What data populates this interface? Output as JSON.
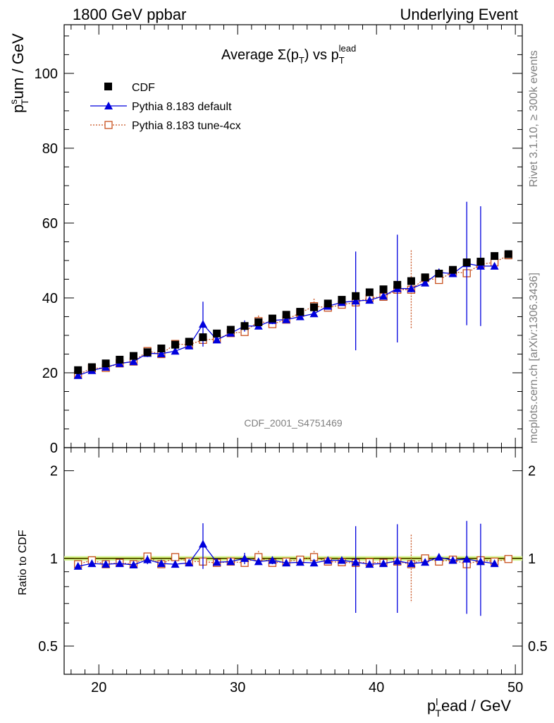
{
  "header": {
    "left": "1800 GeV ppbar",
    "right": "Underlying Event"
  },
  "side_labels": {
    "rivet": "Rivet 3.1.10, ≥ 300k events",
    "mcplots": "mcplots.cern.ch [arXiv:1306.3436]"
  },
  "colors": {
    "cdf": "#000000",
    "default": "#0000dd",
    "tune": "#c8501e",
    "band_green": "#d4f598",
    "band_yellow": "#ffff00"
  },
  "chart_data": [
    {
      "type": "scatter",
      "title": "Average Σ(p_T) vs p_T^lead",
      "title_parts": {
        "pre": "Average ",
        "sigma": "Σ(p",
        "sub1": "T",
        "close": ") vs p",
        "sub2": "T",
        "sup2": "lead"
      },
      "ylabel_parts": {
        "p": "p",
        "sup": "s",
        "sub": "T",
        "rest": "um / GeV"
      },
      "watermark": "CDF_2001_S4751469",
      "xlim": [
        17.5,
        50.5
      ],
      "ylim": [
        0,
        113
      ],
      "yticks": [
        0,
        20,
        40,
        60,
        80,
        100
      ],
      "ytick_labels": [
        "0",
        "20",
        "40",
        "60",
        "80",
        "100"
      ],
      "legend": [
        "CDF",
        "Pythia 8.183 default",
        "Pythia 8.183 tune-4cx"
      ],
      "x": [
        18.5,
        19.5,
        20.5,
        21.5,
        22.5,
        23.5,
        24.5,
        25.5,
        26.5,
        27.5,
        28.5,
        29.5,
        30.5,
        31.5,
        32.5,
        33.5,
        34.5,
        35.5,
        36.5,
        37.5,
        38.5,
        39.5,
        40.5,
        41.5,
        42.5,
        43.5,
        44.5,
        45.5,
        46.5,
        47.5,
        48.5,
        49.5
      ],
      "series": [
        {
          "name": "CDF",
          "values": [
            20.7,
            21.5,
            22.5,
            23.5,
            24.5,
            25.5,
            26.5,
            27.5,
            28.3,
            29.5,
            30.5,
            31.5,
            32.5,
            33.5,
            34.5,
            35.5,
            36.3,
            37.5,
            38.5,
            39.5,
            40.5,
            41.5,
            42.3,
            43.5,
            44.5,
            45.5,
            46.5,
            47.5,
            49.5,
            49.7,
            51.2,
            51.7
          ],
          "errors": [
            0.4,
            0.4,
            0.4,
            0.4,
            0.4,
            0.4,
            0.4,
            0.4,
            0.4,
            0.4,
            0.4,
            0.4,
            0.4,
            0.4,
            0.4,
            0.4,
            0.4,
            0.4,
            0.4,
            0.4,
            0.4,
            0.4,
            0.4,
            0.4,
            0.4,
            0.4,
            0.4,
            0.4,
            0.4,
            0.4,
            0.4,
            0.4
          ]
        },
        {
          "name": "Pythia 8.183 default",
          "x": [
            18.5,
            19.5,
            20.5,
            21.5,
            22.5,
            23.5,
            24.5,
            25.5,
            26.5,
            27.5,
            28.5,
            29.5,
            30.5,
            31.5,
            32.5,
            33.5,
            34.5,
            35.5,
            36.5,
            37.5,
            38.5,
            39.5,
            40.5,
            41.5,
            42.5,
            43.5,
            44.5,
            45.5,
            46.5,
            47.5,
            48.5
          ],
          "values": [
            19.3,
            20.6,
            21.5,
            22.5,
            23.0,
            25.2,
            25.1,
            25.8,
            27.2,
            33.0,
            28.8,
            30.6,
            32.5,
            32.5,
            34.0,
            34.2,
            35.0,
            35.8,
            37.8,
            38.8,
            39.2,
            39.4,
            40.5,
            42.5,
            42.5,
            44.0,
            46.8,
            46.5,
            49.2,
            48.5,
            48.5
          ],
          "errors": [
            0.5,
            0.5,
            0.5,
            0.5,
            0.5,
            1.0,
            0.5,
            0.5,
            0.7,
            6.0,
            0.6,
            0.6,
            1.5,
            0.6,
            1.0,
            0.6,
            0.6,
            0.6,
            0.6,
            0.6,
            13.2,
            0.8,
            0.8,
            14.4,
            1.0,
            0.8,
            1.0,
            0.8,
            16.5,
            16.0,
            0.8
          ]
        },
        {
          "name": "Pythia 8.183 tune-4cx",
          "values": [
            19.5,
            21.2,
            21.3,
            22.5,
            23.0,
            25.8,
            25.0,
            27.7,
            27.5,
            28.8,
            29.0,
            30.6,
            30.9,
            33.8,
            33.0,
            34.2,
            36.0,
            37.8,
            37.4,
            38.2,
            38.8,
            40.0,
            40.3,
            42.2,
            42.2,
            45.3,
            44.8,
            47.0,
            46.6,
            49.0,
            49.5,
            51.4
          ],
          "errors": [
            0.5,
            0.5,
            0.5,
            0.5,
            0.5,
            0.6,
            0.5,
            0.5,
            0.5,
            0.8,
            0.6,
            0.6,
            0.6,
            1.5,
            0.6,
            0.6,
            0.6,
            2.0,
            0.6,
            0.6,
            0.8,
            0.8,
            0.8,
            0.8,
            10.5,
            0.8,
            0.8,
            0.8,
            1.0,
            1.0,
            1.0,
            1.0
          ]
        }
      ]
    },
    {
      "type": "scatter",
      "title": "",
      "ylabel": "Ratio to CDF",
      "xlabel_parts": {
        "p": "p",
        "sup": "l",
        "sub": "T",
        "rest": "ead / GeV"
      },
      "xlim": [
        17.5,
        50.5
      ],
      "ylim": [
        0.4,
        2.4
      ],
      "yscale": "log",
      "yticks": [
        0.5,
        1,
        2
      ],
      "ytick_labels": [
        "0.5",
        "1",
        "2"
      ],
      "xticks": [
        20,
        30,
        40,
        50
      ],
      "xtick_labels": [
        "20",
        "30",
        "40",
        "50"
      ],
      "series": [
        {
          "name": "Pythia 8.183 default",
          "x": [
            18.5,
            19.5,
            20.5,
            21.5,
            22.5,
            23.5,
            24.5,
            25.5,
            26.5,
            27.5,
            28.5,
            29.5,
            30.5,
            31.5,
            32.5,
            33.5,
            34.5,
            35.5,
            36.5,
            37.5,
            38.5,
            39.5,
            40.5,
            41.5,
            42.5,
            43.5,
            44.5,
            45.5,
            46.5,
            47.5,
            48.5
          ],
          "values": [
            0.94,
            0.96,
            0.955,
            0.96,
            0.95,
            0.99,
            0.96,
            0.955,
            0.965,
            1.12,
            0.97,
            0.975,
            1.0,
            0.975,
            0.985,
            0.965,
            0.97,
            0.965,
            0.985,
            0.985,
            0.97,
            0.955,
            0.96,
            0.98,
            0.96,
            0.97,
            1.01,
            0.985,
            0.995,
            0.975,
            0.96
          ],
          "errors": [
            0.02,
            0.02,
            0.02,
            0.02,
            0.02,
            0.035,
            0.02,
            0.02,
            0.025,
            0.2,
            0.02,
            0.02,
            0.045,
            0.02,
            0.03,
            0.02,
            0.02,
            0.02,
            0.02,
            0.02,
            0.32,
            0.02,
            0.02,
            0.33,
            0.02,
            0.02,
            0.02,
            0.02,
            0.35,
            0.34,
            0.02
          ]
        },
        {
          "name": "Pythia 8.183 tune-4cx",
          "values": [
            0.955,
            0.985,
            0.955,
            0.965,
            0.955,
            1.015,
            0.955,
            1.01,
            0.975,
            0.975,
            0.965,
            0.975,
            0.965,
            1.01,
            0.965,
            0.975,
            0.99,
            1.01,
            0.975,
            0.97,
            0.965,
            0.97,
            0.965,
            0.975,
            0.955,
            1.0,
            0.975,
            0.99,
            0.955,
            0.985,
            0.975,
            0.995
          ],
          "errors": [
            0.02,
            0.02,
            0.02,
            0.02,
            0.02,
            0.02,
            0.02,
            0.02,
            0.02,
            0.02,
            0.02,
            0.02,
            0.02,
            0.05,
            0.02,
            0.02,
            0.02,
            0.05,
            0.02,
            0.02,
            0.02,
            0.02,
            0.02,
            0.02,
            0.25,
            0.02,
            0.02,
            0.02,
            0.02,
            0.02,
            0.02,
            0.03
          ]
        }
      ]
    }
  ]
}
